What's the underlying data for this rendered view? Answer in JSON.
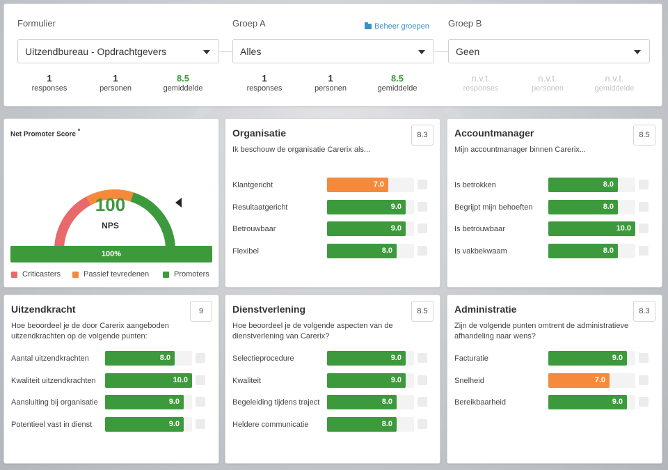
{
  "header": {
    "groups": [
      {
        "label": "Formulier",
        "selected": "Uitzendbureau - Opdrachtgevers",
        "stats": [
          {
            "value": "1",
            "label": "responses"
          },
          {
            "value": "1",
            "label": "personen"
          },
          {
            "value": "8.5",
            "label": "gemiddelde"
          }
        ]
      },
      {
        "label": "Groep A",
        "selected": "Alles",
        "stats": [
          {
            "value": "1",
            "label": "responses"
          },
          {
            "value": "1",
            "label": "personen"
          },
          {
            "value": "8.5",
            "label": "gemiddelde"
          }
        ]
      },
      {
        "label": "Groep B",
        "selected": "Geen",
        "stats": [
          {
            "value": "n.v.t.",
            "label": "responses"
          },
          {
            "value": "n.v.t.",
            "label": "personen"
          },
          {
            "value": "n.v.t.",
            "label": "gemiddelde"
          }
        ]
      }
    ],
    "manage_groups_label": "Beheer groepen"
  },
  "nps": {
    "title": "Net Promoter Score",
    "title_mark": "*",
    "value": "100",
    "unit": "NPS",
    "bar_label": "100%",
    "bar_fraction": 1.0,
    "legend": [
      "Criticasters",
      "Passief tevredenen",
      "Promoters"
    ],
    "colors": {
      "critic": "#e8696b",
      "passive": "#f58a3c",
      "promoter": "#3c9a3c",
      "accent": "#3c9a3c"
    }
  },
  "colors": {
    "green": "#3c9a3c",
    "orange": "#f58a3c"
  },
  "cards": [
    {
      "title": "Organisatie",
      "score": "8.3",
      "subtitle": "Ik beschouw de organisatie Carerix als...",
      "items": [
        {
          "label": "Klantgericht",
          "value": "7.0",
          "level": 0.7,
          "color": "orange"
        },
        {
          "label": "Resultaatgericht",
          "value": "9.0",
          "level": 0.9,
          "color": "green"
        },
        {
          "label": "Betrouwbaar",
          "value": "9.0",
          "level": 0.9,
          "color": "green"
        },
        {
          "label": "Flexibel",
          "value": "8.0",
          "level": 0.8,
          "color": "green"
        }
      ]
    },
    {
      "title": "Accountmanager",
      "score": "8.5",
      "subtitle": "Mijn accountmanager binnen Carerix...",
      "items": [
        {
          "label": "Is betrokken",
          "value": "8.0",
          "level": 0.8,
          "color": "green"
        },
        {
          "label": "Begrijpt mijn behoeften",
          "value": "8.0",
          "level": 0.8,
          "color": "green"
        },
        {
          "label": "Is betrouwbaar",
          "value": "10.0",
          "level": 1.0,
          "color": "green"
        },
        {
          "label": "Is vakbekwaam",
          "value": "8.0",
          "level": 0.8,
          "color": "green"
        }
      ]
    },
    {
      "title": "Uitzendkracht",
      "score": "9",
      "subtitle": "Hoe beoordeel je de door Carerix aangeboden uitzendkrachten op de volgende punten:",
      "items": [
        {
          "label": "Aantal uitzendkrachten",
          "value": "8.0",
          "level": 0.8,
          "color": "green"
        },
        {
          "label": "Kwaliteit uitzendkrachten",
          "value": "10.0",
          "level": 1.0,
          "color": "green"
        },
        {
          "label": "Aansluiting bij organisatie",
          "value": "9.0",
          "level": 0.9,
          "color": "green"
        },
        {
          "label": "Potentieel vast in dienst",
          "value": "9.0",
          "level": 0.9,
          "color": "green"
        }
      ]
    },
    {
      "title": "Dienstverlening",
      "score": "8.5",
      "subtitle": "Hoe beoordeel je de volgende aspecten van de dienstverlening van Carerix?",
      "items": [
        {
          "label": "Selectieprocedure",
          "value": "9.0",
          "level": 0.9,
          "color": "green"
        },
        {
          "label": "Kwaliteit",
          "value": "9.0",
          "level": 0.9,
          "color": "green"
        },
        {
          "label": "Begeleiding tijdens traject",
          "value": "8.0",
          "level": 0.8,
          "color": "green"
        },
        {
          "label": "Heldere communicatie",
          "value": "8.0",
          "level": 0.8,
          "color": "green"
        }
      ]
    },
    {
      "title": "Administratie",
      "score": "8.3",
      "subtitle": "Zijn de volgende punten omtrent de administratieve afhandeling naar wens?",
      "items": [
        {
          "label": "Facturatie",
          "value": "9.0",
          "level": 0.9,
          "color": "green"
        },
        {
          "label": "Snelheid",
          "value": "7.0",
          "level": 0.7,
          "color": "orange"
        },
        {
          "label": "Bereikbaarheid",
          "value": "9.0",
          "level": 0.9,
          "color": "green"
        }
      ]
    }
  ]
}
